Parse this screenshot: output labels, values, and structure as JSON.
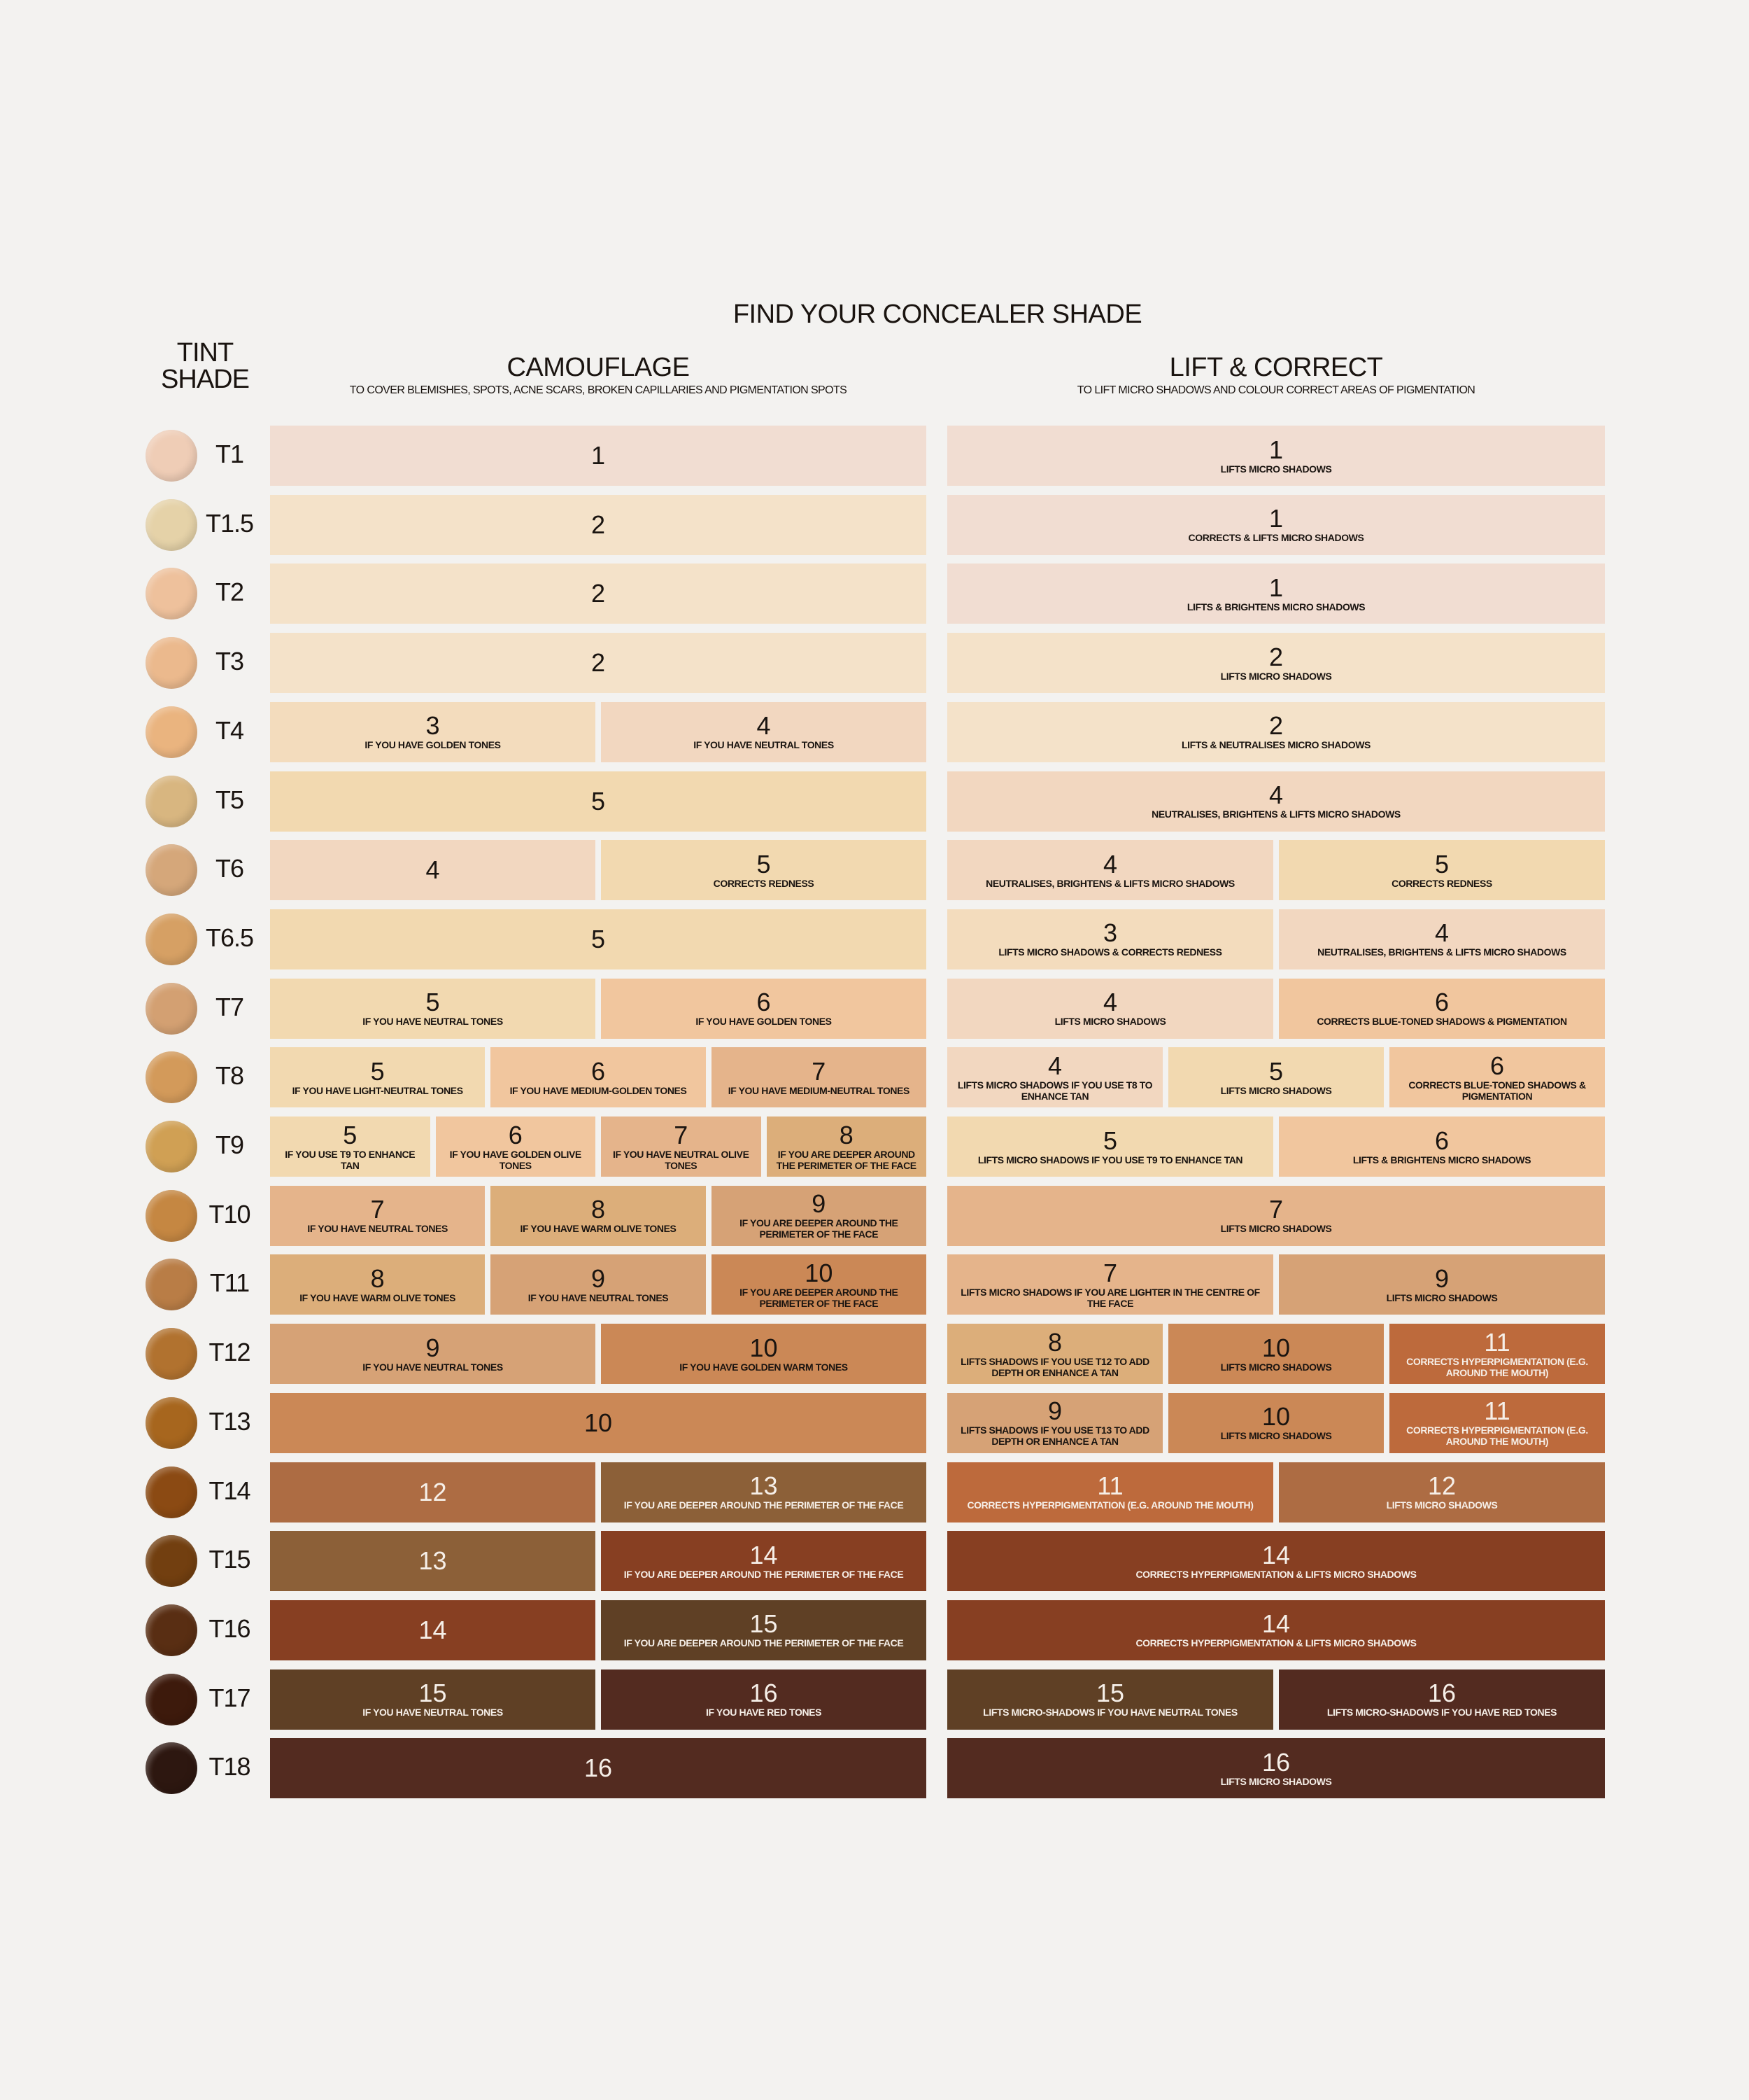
{
  "title": "FIND YOUR CONCEALER SHADE",
  "tint_header": [
    "TINT",
    "SHADE"
  ],
  "camouflage": {
    "title": "CAMOUFLAGE",
    "subtitle": "TO COVER BLEMISHES, SPOTS, ACNE SCARS, BROKEN CAPILLARIES AND PIGMENTATION SPOTS"
  },
  "lift": {
    "title": "LIFT & CORRECT",
    "subtitle": "TO LIFT MICRO SHADOWS AND COLOUR CORRECT AREAS OF PIGMENTATION"
  },
  "concealer_colors": {
    "1": "#f1ddd2",
    "2": "#f4e2c9",
    "3": "#f3dcbd",
    "4": "#f2d7c0",
    "5": "#f2d9b0",
    "6": "#f1c69e",
    "7": "#e5b48b",
    "8": "#dcae7a",
    "9": "#d6a276",
    "10": "#cb8856",
    "11": "#bd6a3c",
    "12": "#ad6c43",
    "13": "#8c6038",
    "14": "#873f22",
    "15": "#5f4025",
    "16": "#532b20"
  },
  "rows": [
    {
      "shade": "T1",
      "swatch": "#efcdb6",
      "camouflage": [
        {
          "n": "1",
          "note": ""
        }
      ],
      "lift": [
        {
          "n": "1",
          "note": "LIFTS MICRO SHADOWS"
        }
      ]
    },
    {
      "shade": "T1.5",
      "swatch": "#e5d2a8",
      "camouflage": [
        {
          "n": "2",
          "note": ""
        }
      ],
      "lift": [
        {
          "n": "1",
          "note": "CORRECTS & LIFTS MICRO SHADOWS"
        }
      ]
    },
    {
      "shade": "T2",
      "swatch": "#eec19c",
      "camouflage": [
        {
          "n": "2",
          "note": ""
        }
      ],
      "lift": [
        {
          "n": "1",
          "note": "LIFTS & BRIGHTENS MICRO SHADOWS"
        }
      ]
    },
    {
      "shade": "T3",
      "swatch": "#ebb98d",
      "camouflage": [
        {
          "n": "2",
          "note": ""
        }
      ],
      "lift": [
        {
          "n": "2",
          "note": "LIFTS MICRO SHADOWS"
        }
      ]
    },
    {
      "shade": "T4",
      "swatch": "#eab47f",
      "camouflage": [
        {
          "n": "3",
          "note": "IF YOU HAVE GOLDEN TONES"
        },
        {
          "n": "4",
          "note": "IF YOU HAVE NEUTRAL TONES"
        }
      ],
      "lift": [
        {
          "n": "2",
          "note": "LIFTS & NEUTRALISES MICRO SHADOWS"
        }
      ]
    },
    {
      "shade": "T5",
      "swatch": "#d8b680",
      "camouflage": [
        {
          "n": "5",
          "note": ""
        }
      ],
      "lift": [
        {
          "n": "4",
          "note": "NEUTRALISES, BRIGHTENS & LIFTS MICRO SHADOWS"
        }
      ]
    },
    {
      "shade": "T6",
      "swatch": "#d5a77a",
      "camouflage": [
        {
          "n": "4",
          "note": ""
        },
        {
          "n": "5",
          "note": "CORRECTS REDNESS"
        }
      ],
      "lift": [
        {
          "n": "4",
          "note": "NEUTRALISES, BRIGHTENS & LIFTS MICRO SHADOWS"
        },
        {
          "n": "5",
          "note": "CORRECTS REDNESS"
        }
      ]
    },
    {
      "shade": "T6.5",
      "swatch": "#d6a064",
      "camouflage": [
        {
          "n": "5",
          "note": ""
        }
      ],
      "lift": [
        {
          "n": "3",
          "note": "LIFTS MICRO SHADOWS & CORRECTS REDNESS"
        },
        {
          "n": "4",
          "note": "NEUTRALISES, BRIGHTENS & LIFTS MICRO SHADOWS"
        }
      ]
    },
    {
      "shade": "T7",
      "swatch": "#d3a072",
      "camouflage": [
        {
          "n": "5",
          "note": "IF YOU HAVE NEUTRAL TONES"
        },
        {
          "n": "6",
          "note": "IF YOU HAVE GOLDEN TONES"
        }
      ],
      "lift": [
        {
          "n": "4",
          "note": "LIFTS MICRO SHADOWS"
        },
        {
          "n": "6",
          "note": "CORRECTS BLUE-TONED SHADOWS & PIGMENTATION"
        }
      ]
    },
    {
      "shade": "T8",
      "swatch": "#d39a5a",
      "camouflage": [
        {
          "n": "5",
          "note": "IF YOU HAVE LIGHT-NEUTRAL TONES"
        },
        {
          "n": "6",
          "note": "IF YOU HAVE MEDIUM-GOLDEN TONES"
        },
        {
          "n": "7",
          "note": "IF YOU HAVE MEDIUM-NEUTRAL TONES"
        }
      ],
      "lift": [
        {
          "n": "4",
          "note": "LIFTS MICRO SHADOWS IF YOU USE T8 TO ENHANCE TAN"
        },
        {
          "n": "5",
          "note": "LIFTS MICRO SHADOWS"
        },
        {
          "n": "6",
          "note": "CORRECTS BLUE-TONED SHADOWS & PIGMENTATION"
        }
      ]
    },
    {
      "shade": "T9",
      "swatch": "#d0a054",
      "camouflage": [
        {
          "n": "5",
          "note": "IF YOU USE T9 TO ENHANCE TAN"
        },
        {
          "n": "6",
          "note": "IF YOU HAVE GOLDEN OLIVE TONES"
        },
        {
          "n": "7",
          "note": "IF YOU HAVE NEUTRAL OLIVE TONES"
        },
        {
          "n": "8",
          "note": "IF YOU ARE DEEPER AROUND THE PERIMETER OF THE FACE"
        }
      ],
      "lift": [
        {
          "n": "5",
          "note": "LIFTS MICRO SHADOWS IF YOU USE T9 TO ENHANCE TAN"
        },
        {
          "n": "6",
          "note": "LIFTS & BRIGHTENS MICRO SHADOWS"
        }
      ]
    },
    {
      "shade": "T10",
      "swatch": "#c58742",
      "camouflage": [
        {
          "n": "7",
          "note": "IF YOU HAVE NEUTRAL TONES"
        },
        {
          "n": "8",
          "note": "IF YOU HAVE WARM OLIVE TONES"
        },
        {
          "n": "9",
          "note": "IF YOU ARE DEEPER AROUND THE PERIMETER OF THE FACE"
        }
      ],
      "lift": [
        {
          "n": "7",
          "note": "LIFTS MICRO SHADOWS"
        }
      ]
    },
    {
      "shade": "T11",
      "swatch": "#b97d46",
      "camouflage": [
        {
          "n": "8",
          "note": "IF YOU HAVE WARM OLIVE TONES"
        },
        {
          "n": "9",
          "note": "IF YOU HAVE NEUTRAL TONES"
        },
        {
          "n": "10",
          "note": "IF YOU ARE DEEPER AROUND THE PERIMETER OF THE FACE"
        }
      ],
      "lift": [
        {
          "n": "7",
          "note": "LIFTS MICRO SHADOWS IF YOU ARE LIGHTER IN THE CENTRE OF THE FACE"
        },
        {
          "n": "9",
          "note": "LIFTS MICRO SHADOWS"
        }
      ]
    },
    {
      "shade": "T12",
      "swatch": "#b1722f",
      "camouflage": [
        {
          "n": "9",
          "note": "IF YOU HAVE NEUTRAL TONES"
        },
        {
          "n": "10",
          "note": "IF YOU HAVE GOLDEN WARM TONES"
        }
      ],
      "lift": [
        {
          "n": "8",
          "note": "LIFTS SHADOWS IF YOU USE T12 TO ADD DEPTH OR ENHANCE A TAN"
        },
        {
          "n": "10",
          "note": "LIFTS MICRO SHADOWS"
        },
        {
          "n": "11",
          "note": "CORRECTS HYPERPIGMENTATION (E.G. AROUND THE MOUTH)"
        }
      ]
    },
    {
      "shade": "T13",
      "swatch": "#a7661e",
      "camouflage": [
        {
          "n": "10",
          "note": ""
        }
      ],
      "lift": [
        {
          "n": "9",
          "note": "LIFTS SHADOWS IF YOU USE T13 TO ADD DEPTH OR ENHANCE A TAN"
        },
        {
          "n": "10",
          "note": "LIFTS MICRO SHADOWS"
        },
        {
          "n": "11",
          "note": "CORRECTS HYPERPIGMENTATION (E.G. AROUND THE MOUTH)"
        }
      ]
    },
    {
      "shade": "T14",
      "swatch": "#8b4a13",
      "camouflage": [
        {
          "n": "12",
          "note": ""
        },
        {
          "n": "13",
          "note": "IF YOU ARE DEEPER AROUND THE PERIMETER OF THE FACE"
        }
      ],
      "lift": [
        {
          "n": "11",
          "note": "CORRECTS HYPERPIGMENTATION (E.G. AROUND THE MOUTH)"
        },
        {
          "n": "12",
          "note": "LIFTS MICRO SHADOWS"
        }
      ]
    },
    {
      "shade": "T15",
      "swatch": "#723f10",
      "camouflage": [
        {
          "n": "13",
          "note": ""
        },
        {
          "n": "14",
          "note": "IF YOU ARE DEEPER AROUND THE PERIMETER OF THE FACE"
        }
      ],
      "lift": [
        {
          "n": "14",
          "note": "CORRECTS HYPERPIGMENTATION & LIFTS  MICRO SHADOWS"
        }
      ]
    },
    {
      "shade": "T16",
      "swatch": "#592e13",
      "camouflage": [
        {
          "n": "14",
          "note": ""
        },
        {
          "n": "15",
          "note": "IF YOU ARE DEEPER AROUND THE PERIMETER OF THE FACE"
        }
      ],
      "lift": [
        {
          "n": "14",
          "note": "CORRECTS HYPERPIGMENTATION & LIFTS  MICRO SHADOWS"
        }
      ]
    },
    {
      "shade": "T17",
      "swatch": "#3d1a0c",
      "camouflage": [
        {
          "n": "15",
          "note": "IF YOU HAVE NEUTRAL TONES"
        },
        {
          "n": "16",
          "note": "IF YOU HAVE RED TONES"
        }
      ],
      "lift": [
        {
          "n": "15",
          "note": "LIFTS  MICRO-SHADOWS IF YOU HAVE NEUTRAL TONES"
        },
        {
          "n": "16",
          "note": "LIFTS  MICRO-SHADOWS IF YOU HAVE RED TONES"
        }
      ]
    },
    {
      "shade": "T18",
      "swatch": "#2d1710",
      "camouflage": [
        {
          "n": "16",
          "note": ""
        }
      ],
      "lift": [
        {
          "n": "16",
          "note": "LIFTS  MICRO SHADOWS"
        }
      ]
    }
  ]
}
